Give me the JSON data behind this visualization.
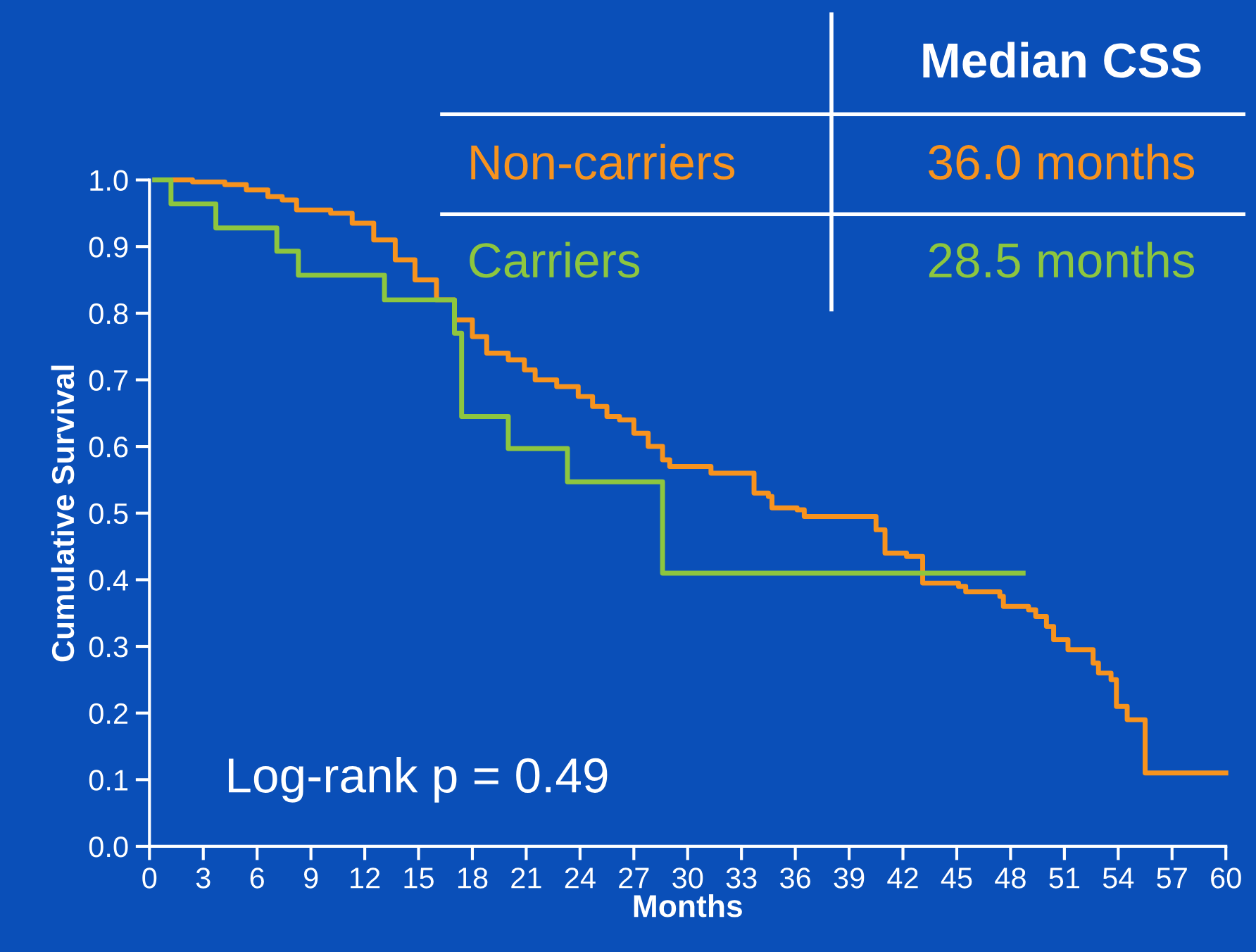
{
  "chart_data": {
    "type": "step",
    "xlabel": "Months",
    "ylabel": "Cumulative Survival",
    "xlim": [
      0,
      60
    ],
    "xticks": [
      0,
      3,
      6,
      9,
      12,
      15,
      18,
      21,
      24,
      27,
      30,
      33,
      36,
      39,
      42,
      45,
      48,
      51,
      54,
      57,
      60
    ],
    "ylim": [
      0,
      1.0
    ],
    "yticks": [
      {
        "value": 0,
        "label": "0.0"
      },
      0.1,
      0.2,
      0.3,
      0.4,
      0.5,
      0.6,
      0.7,
      0.8,
      0.9,
      {
        "value": 1.0,
        "label": "1.0"
      }
    ],
    "grid": false,
    "legend": "top",
    "series": [
      {
        "name": "Non-carriers",
        "color": "#f7931e",
        "x": [
          0.3,
          2.0,
          2.4,
          4.2,
          5.4,
          6.6,
          7.4,
          8.2,
          10.1,
          11.3,
          12.5,
          13.7,
          14.8,
          16.0,
          17.0,
          18.0,
          18.8,
          20.0,
          20.9,
          21.5,
          22.7,
          23.9,
          24.7,
          25.5,
          26.2,
          27.0,
          27.8,
          28.6,
          29.0,
          31.3,
          33.7,
          34.5,
          34.7,
          36.1,
          36.5,
          38.7,
          40.5,
          41.0,
          42.2,
          43.1,
          45.1,
          45.5,
          47.4,
          47.6,
          49.0,
          49.4,
          50.0,
          50.4,
          51.2,
          52.6,
          52.9,
          53.6,
          53.9,
          54.5,
          55.5,
          60
        ],
        "values": [
          1.0,
          1.0,
          0.997,
          0.993,
          0.985,
          0.975,
          0.97,
          0.955,
          0.95,
          0.935,
          0.91,
          0.88,
          0.85,
          0.82,
          0.79,
          0.765,
          0.74,
          0.73,
          0.715,
          0.7,
          0.69,
          0.675,
          0.66,
          0.645,
          0.64,
          0.62,
          0.6,
          0.58,
          0.57,
          0.56,
          0.53,
          0.525,
          0.508,
          0.505,
          0.495,
          0.495,
          0.475,
          0.44,
          0.435,
          0.395,
          0.39,
          0.382,
          0.375,
          0.36,
          0.355,
          0.345,
          0.33,
          0.31,
          0.295,
          0.275,
          0.26,
          0.25,
          0.21,
          0.19,
          0.11,
          0.11
        ]
      },
      {
        "name": "Carriers",
        "color": "#8dc63f",
        "x": [
          0.3,
          1.2,
          3.7,
          7.1,
          8.3,
          13.1,
          17.0,
          17.4,
          20.0,
          23.3,
          28.6,
          48.7
        ],
        "values": [
          1.0,
          0.964,
          0.928,
          0.893,
          0.857,
          0.82,
          0.77,
          0.645,
          0.597,
          0.547,
          0.41,
          0.41
        ]
      }
    ],
    "annotations": [
      "Median CSS",
      "36.0 months",
      "28.5 months",
      "Log-rank p = 0.49"
    ]
  }
}
